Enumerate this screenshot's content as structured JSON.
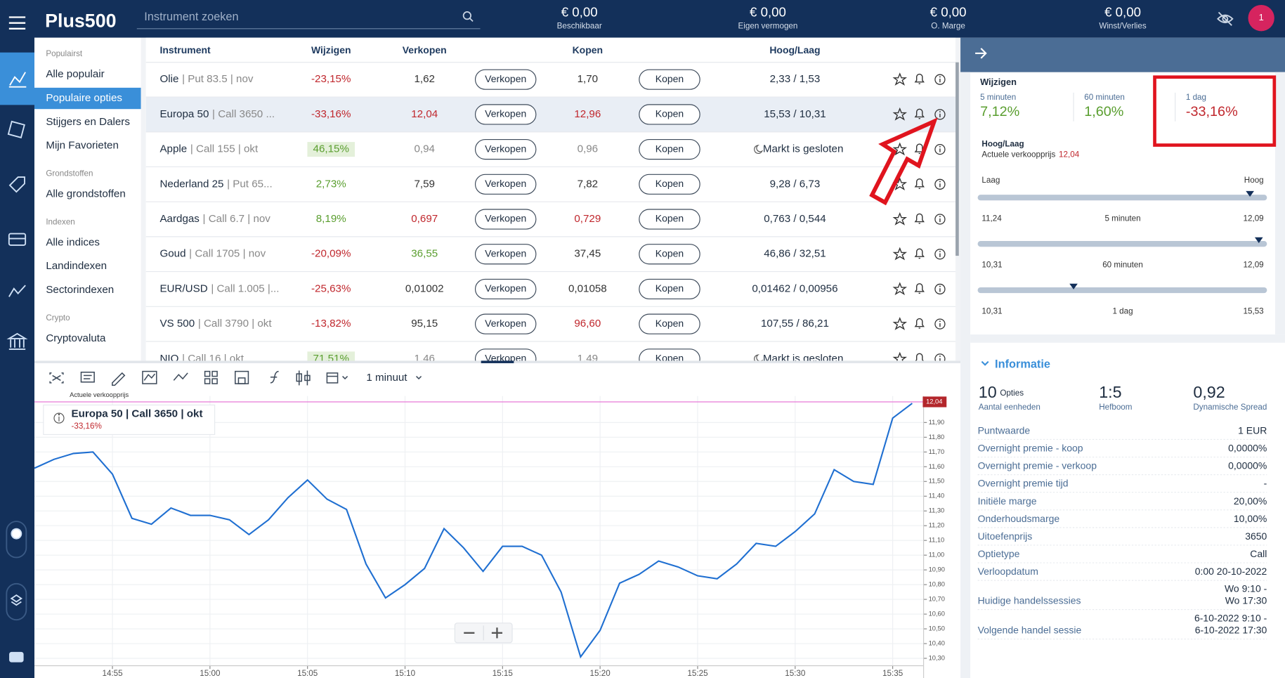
{
  "header": {
    "logo": "Plus500",
    "search_placeholder": "Instrument zoeken",
    "stats": [
      {
        "value": "€ 0,00",
        "label": "Beschikbaar"
      },
      {
        "value": "€ 0,00",
        "label": "Eigen vermogen"
      },
      {
        "value": "€ 0,00",
        "label": "O. Marge"
      },
      {
        "value": "€ 0,00",
        "label": "Winst/Verlies"
      }
    ],
    "notification_count": "1"
  },
  "sidebar": {
    "active": "Populaire opties",
    "sections": [
      {
        "title": "Populairst",
        "items": [
          "Alle populair",
          "Populaire opties",
          "Stijgers en Dalers",
          "Mijn Favorieten"
        ]
      },
      {
        "title": "Grondstoffen",
        "items": [
          "Alle grondstoffen"
        ]
      },
      {
        "title": "Indexen",
        "items": [
          "Alle indices",
          "Landindexen",
          "Sectorindexen"
        ]
      },
      {
        "title": "Crypto",
        "items": [
          "Cryptovaluta"
        ]
      }
    ]
  },
  "table": {
    "columns": [
      "Instrument",
      "Wijzigen",
      "Verkopen",
      "Kopen",
      "Hoog/Laag"
    ],
    "sell_button": "Verkopen",
    "buy_button": "Kopen",
    "selected_row": 1,
    "rows": [
      {
        "name": "Olie",
        "detail": "| Put 83.5 | nov",
        "change": "-23,15%",
        "sell": "1,62",
        "buy": "1,70",
        "high_low": "2,33 / 1,53",
        "colors": [
          "#c0272d",
          "#333333",
          "#333333"
        ]
      },
      {
        "name": "Europa 50",
        "detail": "| Call 3650 ...",
        "change": "-33,16%",
        "sell": "12,04",
        "buy": "12,96",
        "high_low": "15,53 / 10,31",
        "colors": [
          "#c0272d",
          "#c0272d",
          "#c0272d"
        ]
      },
      {
        "name": "Apple",
        "detail": "| Call 155 | okt",
        "change": "46,15%",
        "sell": "0,94",
        "buy": "0,96",
        "high_low": "Markt is gesloten",
        "colors": [
          "#5a9e2f",
          "#888888",
          "#888888"
        ],
        "closed": true,
        "badge": true
      },
      {
        "name": "Nederland 25",
        "detail": "| Put 65...",
        "change": "2,73%",
        "sell": "7,59",
        "buy": "7,82",
        "high_low": "9,28 / 6,73",
        "colors": [
          "#5a9e2f",
          "#333333",
          "#333333"
        ]
      },
      {
        "name": "Aardgas",
        "detail": "| Call 6.7 | nov",
        "change": "8,19%",
        "sell": "0,697",
        "buy": "0,729",
        "high_low": "0,763 / 0,544",
        "colors": [
          "#5a9e2f",
          "#c0272d",
          "#c0272d"
        ]
      },
      {
        "name": "Goud",
        "detail": "| Call 1705 | nov",
        "change": "-20,09%",
        "sell": "36,55",
        "buy": "37,45",
        "high_low": "46,86 / 32,51",
        "colors": [
          "#c0272d",
          "#5a9e2f",
          "#333333"
        ]
      },
      {
        "name": "EUR/USD",
        "detail": "| Call 1.005 |...",
        "change": "-25,63%",
        "sell": "0,01002",
        "buy": "0,01058",
        "high_low": "0,01462 / 0,00956",
        "colors": [
          "#c0272d",
          "#333333",
          "#333333"
        ]
      },
      {
        "name": "VS 500",
        "detail": "| Call 3790 | okt",
        "change": "-13,82%",
        "sell": "95,15",
        "buy": "96,60",
        "high_low": "107,55 / 86,21",
        "colors": [
          "#c0272d",
          "#333333",
          "#c0272d"
        ]
      },
      {
        "name": "NIO",
        "detail": "| Call 16 | okt",
        "change": "71,51%",
        "sell": "1,46",
        "buy": "1,49",
        "high_low": "Markt is gesloten",
        "colors": [
          "#5a9e2f",
          "#888888",
          "#888888"
        ],
        "closed": true,
        "badge": true
      }
    ]
  },
  "chart_toolbar": {
    "interval": "1 minuut"
  },
  "chart_data": {
    "type": "line",
    "title": "Europa 50 | Call 3650 | okt",
    "subtitle": "-33,16%",
    "annotation": "Actuele verkoopprijs",
    "current_price": 12.04,
    "current_price_label": "12,04",
    "color": "#1f6fd1",
    "price_line_color": "#e879d8",
    "grid": true,
    "x": [
      891,
      892,
      893,
      894,
      895,
      896,
      897,
      898,
      899,
      900,
      901,
      902,
      903,
      904,
      905,
      906,
      907,
      908,
      909,
      910,
      911,
      912,
      913,
      914,
      915,
      916,
      917,
      918,
      919,
      920,
      921,
      922,
      923,
      924,
      925,
      926,
      927,
      928,
      929,
      930,
      931,
      932,
      933,
      934,
      935,
      936
    ],
    "values": [
      11.59,
      11.65,
      11.69,
      11.7,
      11.55,
      11.25,
      11.21,
      11.32,
      11.27,
      11.27,
      11.24,
      11.14,
      11.24,
      11.39,
      11.51,
      11.38,
      11.31,
      10.94,
      10.71,
      10.8,
      10.91,
      11.18,
      11.05,
      10.89,
      11.06,
      11.06,
      11.0,
      10.75,
      10.31,
      10.49,
      10.81,
      10.87,
      10.96,
      10.92,
      10.86,
      10.84,
      10.94,
      11.08,
      11.06,
      11.16,
      11.28,
      11.58,
      11.5,
      11.48,
      11.93,
      12.03
    ],
    "xlim": [
      891,
      936.5
    ],
    "xticks": [
      {
        "value": 895,
        "label": "14:55"
      },
      {
        "value": 900,
        "label": "15:00"
      },
      {
        "value": 905,
        "label": "15:05"
      },
      {
        "value": 910,
        "label": "15:10"
      },
      {
        "value": 915,
        "label": "15:15"
      },
      {
        "value": 920,
        "label": "15:20"
      },
      {
        "value": 925,
        "label": "15:25"
      },
      {
        "value": 930,
        "label": "15:30"
      },
      {
        "value": 935,
        "label": "15:35"
      }
    ],
    "ylim": [
      10.25,
      12.08
    ],
    "yticks": [
      {
        "value": 10.3,
        "label": "10,30"
      },
      {
        "value": 10.4,
        "label": "10,40"
      },
      {
        "value": 10.5,
        "label": "10,50"
      },
      {
        "value": 10.6,
        "label": "10,60"
      },
      {
        "value": 10.7,
        "label": "10,70"
      },
      {
        "value": 10.8,
        "label": "10,80"
      },
      {
        "value": 10.9,
        "label": "10,90"
      },
      {
        "value": 11.0,
        "label": "11,00"
      },
      {
        "value": 11.1,
        "label": "11,10"
      },
      {
        "value": 11.2,
        "label": "11,20"
      },
      {
        "value": 11.3,
        "label": "11,30"
      },
      {
        "value": 11.4,
        "label": "11,40"
      },
      {
        "value": 11.5,
        "label": "11,50"
      },
      {
        "value": 11.6,
        "label": "11,60"
      },
      {
        "value": 11.7,
        "label": "11,70"
      },
      {
        "value": 11.8,
        "label": "11,80"
      },
      {
        "value": 11.9,
        "label": "11,90"
      }
    ]
  },
  "details": {
    "changes_title": "Wijzigen",
    "changes": [
      {
        "label": "5 minuten",
        "value": "7,12%",
        "color": "#5a9e2f"
      },
      {
        "label": "60 minuten",
        "value": "1,60%",
        "color": "#5a9e2f"
      },
      {
        "label": "1 dag",
        "value": "-33,16%",
        "color": "#c0272d"
      }
    ],
    "high_low_title": "Hoog/Laag",
    "price_caption": "Actuele verkoopprijs",
    "price": 12.04,
    "price_label": "12,04",
    "low_caption": "Laag",
    "high_caption": "Hoog",
    "ranges": [
      {
        "label": "5 minuten",
        "low": {
          "value": 11.24,
          "label": "11,24"
        },
        "high": {
          "value": 12.09,
          "label": "12,09"
        }
      },
      {
        "label": "60 minuten",
        "low": {
          "value": 10.31,
          "label": "10,31"
        },
        "high": {
          "value": 12.09,
          "label": "12,09"
        }
      },
      {
        "label": "1 dag",
        "low": {
          "value": 10.31,
          "label": "10,31"
        },
        "high": {
          "value": 15.53,
          "label": "15,53"
        }
      }
    ],
    "info_title": "Informatie",
    "summary": [
      {
        "value": "10",
        "unit": "Opties",
        "label": "Aantal eenheden"
      },
      {
        "value": "1:5",
        "label": "Hefboom"
      },
      {
        "value": "0,92",
        "label": "Dynamische Spread"
      }
    ],
    "rows": [
      {
        "label": "Puntwaarde",
        "value": [
          "1 EUR"
        ]
      },
      {
        "label": "Overnight premie - koop",
        "value": [
          "0,0000%"
        ]
      },
      {
        "label": "Overnight premie - verkoop",
        "value": [
          "0,0000%"
        ]
      },
      {
        "label": "Overnight premie tijd",
        "value": [
          "-"
        ]
      },
      {
        "label": "Initiële marge",
        "value": [
          "20,00%"
        ]
      },
      {
        "label": "Onderhoudsmarge",
        "value": [
          "10,00%"
        ]
      },
      {
        "label": "Uitoefenprijs",
        "value": [
          "3650"
        ]
      },
      {
        "label": "Optietype",
        "value": [
          "Call"
        ]
      },
      {
        "label": "Verloopdatum",
        "value": [
          "0:00 20-10-2022"
        ]
      },
      {
        "label": "Huidige handelssessies",
        "value": [
          "Wo 9:10 -",
          "Wo 17:30"
        ]
      },
      {
        "label": "Volgende handel sessie",
        "value": [
          "6-10-2022 9:10 -",
          "6-10-2022 17:30"
        ]
      }
    ]
  }
}
